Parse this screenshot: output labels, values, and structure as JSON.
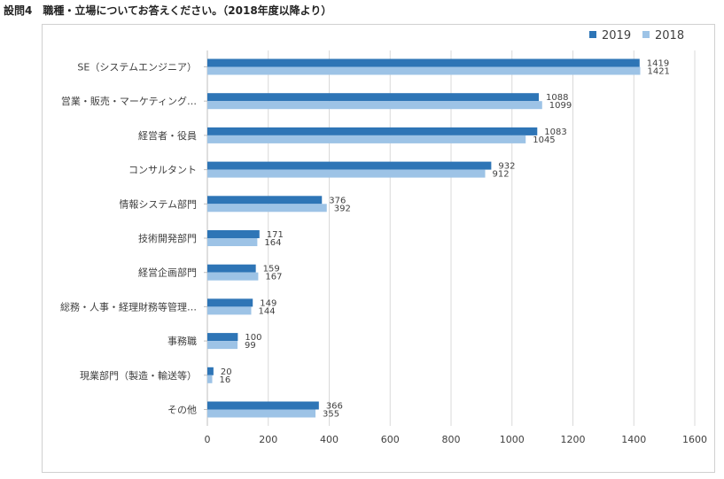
{
  "header": {
    "title": "設問4　職種・立場についてお答えください。（2018年度以降より）"
  },
  "chart_data": {
    "type": "bar",
    "orientation": "horizontal",
    "title": "",
    "xlabel": "",
    "ylabel": "",
    "categories": [
      "SE（システムエンジニア）",
      "営業・販売・マーケティング…",
      "経営者・役員",
      "コンサルタント",
      "情報システム部門",
      "技術開発部門",
      "経営企画部門",
      "総務・人事・経理財務等管理…",
      "事務職",
      "現業部門（製造・輸送等）",
      "その他"
    ],
    "series": [
      {
        "name": "2019",
        "color": "#2e75b6",
        "values": [
          1419,
          1088,
          1083,
          932,
          376,
          171,
          159,
          149,
          100,
          20,
          366
        ]
      },
      {
        "name": "2018",
        "color": "#9dc3e6",
        "values": [
          1421,
          1099,
          1045,
          912,
          392,
          164,
          167,
          144,
          99,
          16,
          355
        ]
      }
    ],
    "xlim": [
      0,
      1600
    ],
    "xticks": [
      "0",
      "200",
      "400",
      "600",
      "800",
      "1000",
      "1200",
      "1400",
      "1600"
    ],
    "grid": true,
    "legend_position": "top-right"
  }
}
